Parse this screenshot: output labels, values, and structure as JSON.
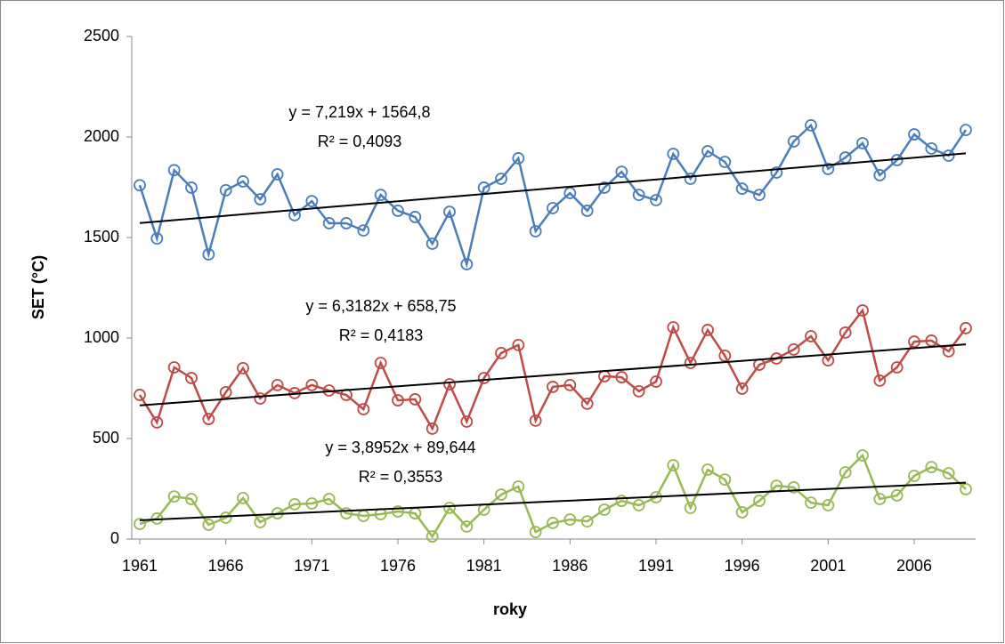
{
  "chart_data": {
    "type": "line",
    "x_label": "roky",
    "y_label": "SET (°C)",
    "x": [
      1961,
      1962,
      1963,
      1964,
      1965,
      1966,
      1967,
      1968,
      1969,
      1970,
      1971,
      1972,
      1973,
      1974,
      1975,
      1976,
      1977,
      1978,
      1979,
      1980,
      1981,
      1982,
      1983,
      1984,
      1985,
      1986,
      1987,
      1988,
      1989,
      1990,
      1991,
      1992,
      1993,
      1994,
      1995,
      1996,
      1997,
      1998,
      1999,
      2000,
      2001,
      2002,
      2003,
      2004,
      2005,
      2006,
      2007,
      2008,
      2009
    ],
    "xlim": [
      1961,
      2009
    ],
    "xticks": [
      1961,
      1966,
      1971,
      1976,
      1981,
      1986,
      1991,
      1996,
      2001,
      2006
    ],
    "ylim": [
      0,
      2500
    ],
    "yticks": [
      0,
      500,
      1000,
      1500,
      2000,
      2500
    ],
    "series": [
      {
        "color": "#4a7ebb",
        "values": [
          1760,
          1495,
          1835,
          1748,
          1416,
          1735,
          1779,
          1690,
          1814,
          1611,
          1681,
          1571,
          1571,
          1535,
          1712,
          1633,
          1602,
          1469,
          1628,
          1367,
          1748,
          1792,
          1894,
          1531,
          1646,
          1721,
          1633,
          1748,
          1827,
          1712,
          1686,
          1916,
          1792,
          1929,
          1876,
          1743,
          1712,
          1823,
          1978,
          2058,
          1841,
          1898,
          1969,
          1810,
          1885,
          2013,
          1943,
          1907,
          2035
        ],
        "trendline": {
          "equation": "y = 7,219x + 1564,8",
          "r2": "R² = 0,4093",
          "slope": 7.219,
          "intercept": 1564.8
        }
      },
      {
        "color": "#be4b48",
        "values": [
          717,
          580,
          854,
          801,
          597,
          730,
          850,
          699,
          766,
          726,
          766,
          739,
          717,
          646,
          876,
          690,
          695,
          549,
          770,
          584,
          801,
          925,
          965,
          589,
          757,
          766,
          673,
          810,
          805,
          735,
          783,
          1053,
          876,
          1040,
          912,
          748,
          867,
          898,
          943,
          1009,
          889,
          1027,
          1137,
          788,
          854,
          982,
          987,
          934,
          1049
        ],
        "trendline": {
          "equation": "y = 6,3182x + 658,75",
          "r2": "R² = 0,4183",
          "slope": 6.3182,
          "intercept": 658.75
        }
      },
      {
        "color": "#98b954",
        "values": [
          75,
          102,
          212,
          199,
          71,
          106,
          204,
          84,
          128,
          173,
          177,
          199,
          128,
          115,
          124,
          137,
          128,
          13,
          155,
          62,
          146,
          221,
          261,
          35,
          80,
          97,
          88,
          146,
          190,
          168,
          208,
          367,
          155,
          345,
          296,
          133,
          190,
          265,
          257,
          181,
          168,
          332,
          416,
          199,
          217,
          314,
          358,
          327,
          248
        ],
        "trendline": {
          "equation": "y = 3,8952x + 89,644",
          "r2": "R² = 0,3553",
          "slope": 3.8952,
          "intercept": 89.644
        }
      }
    ]
  }
}
